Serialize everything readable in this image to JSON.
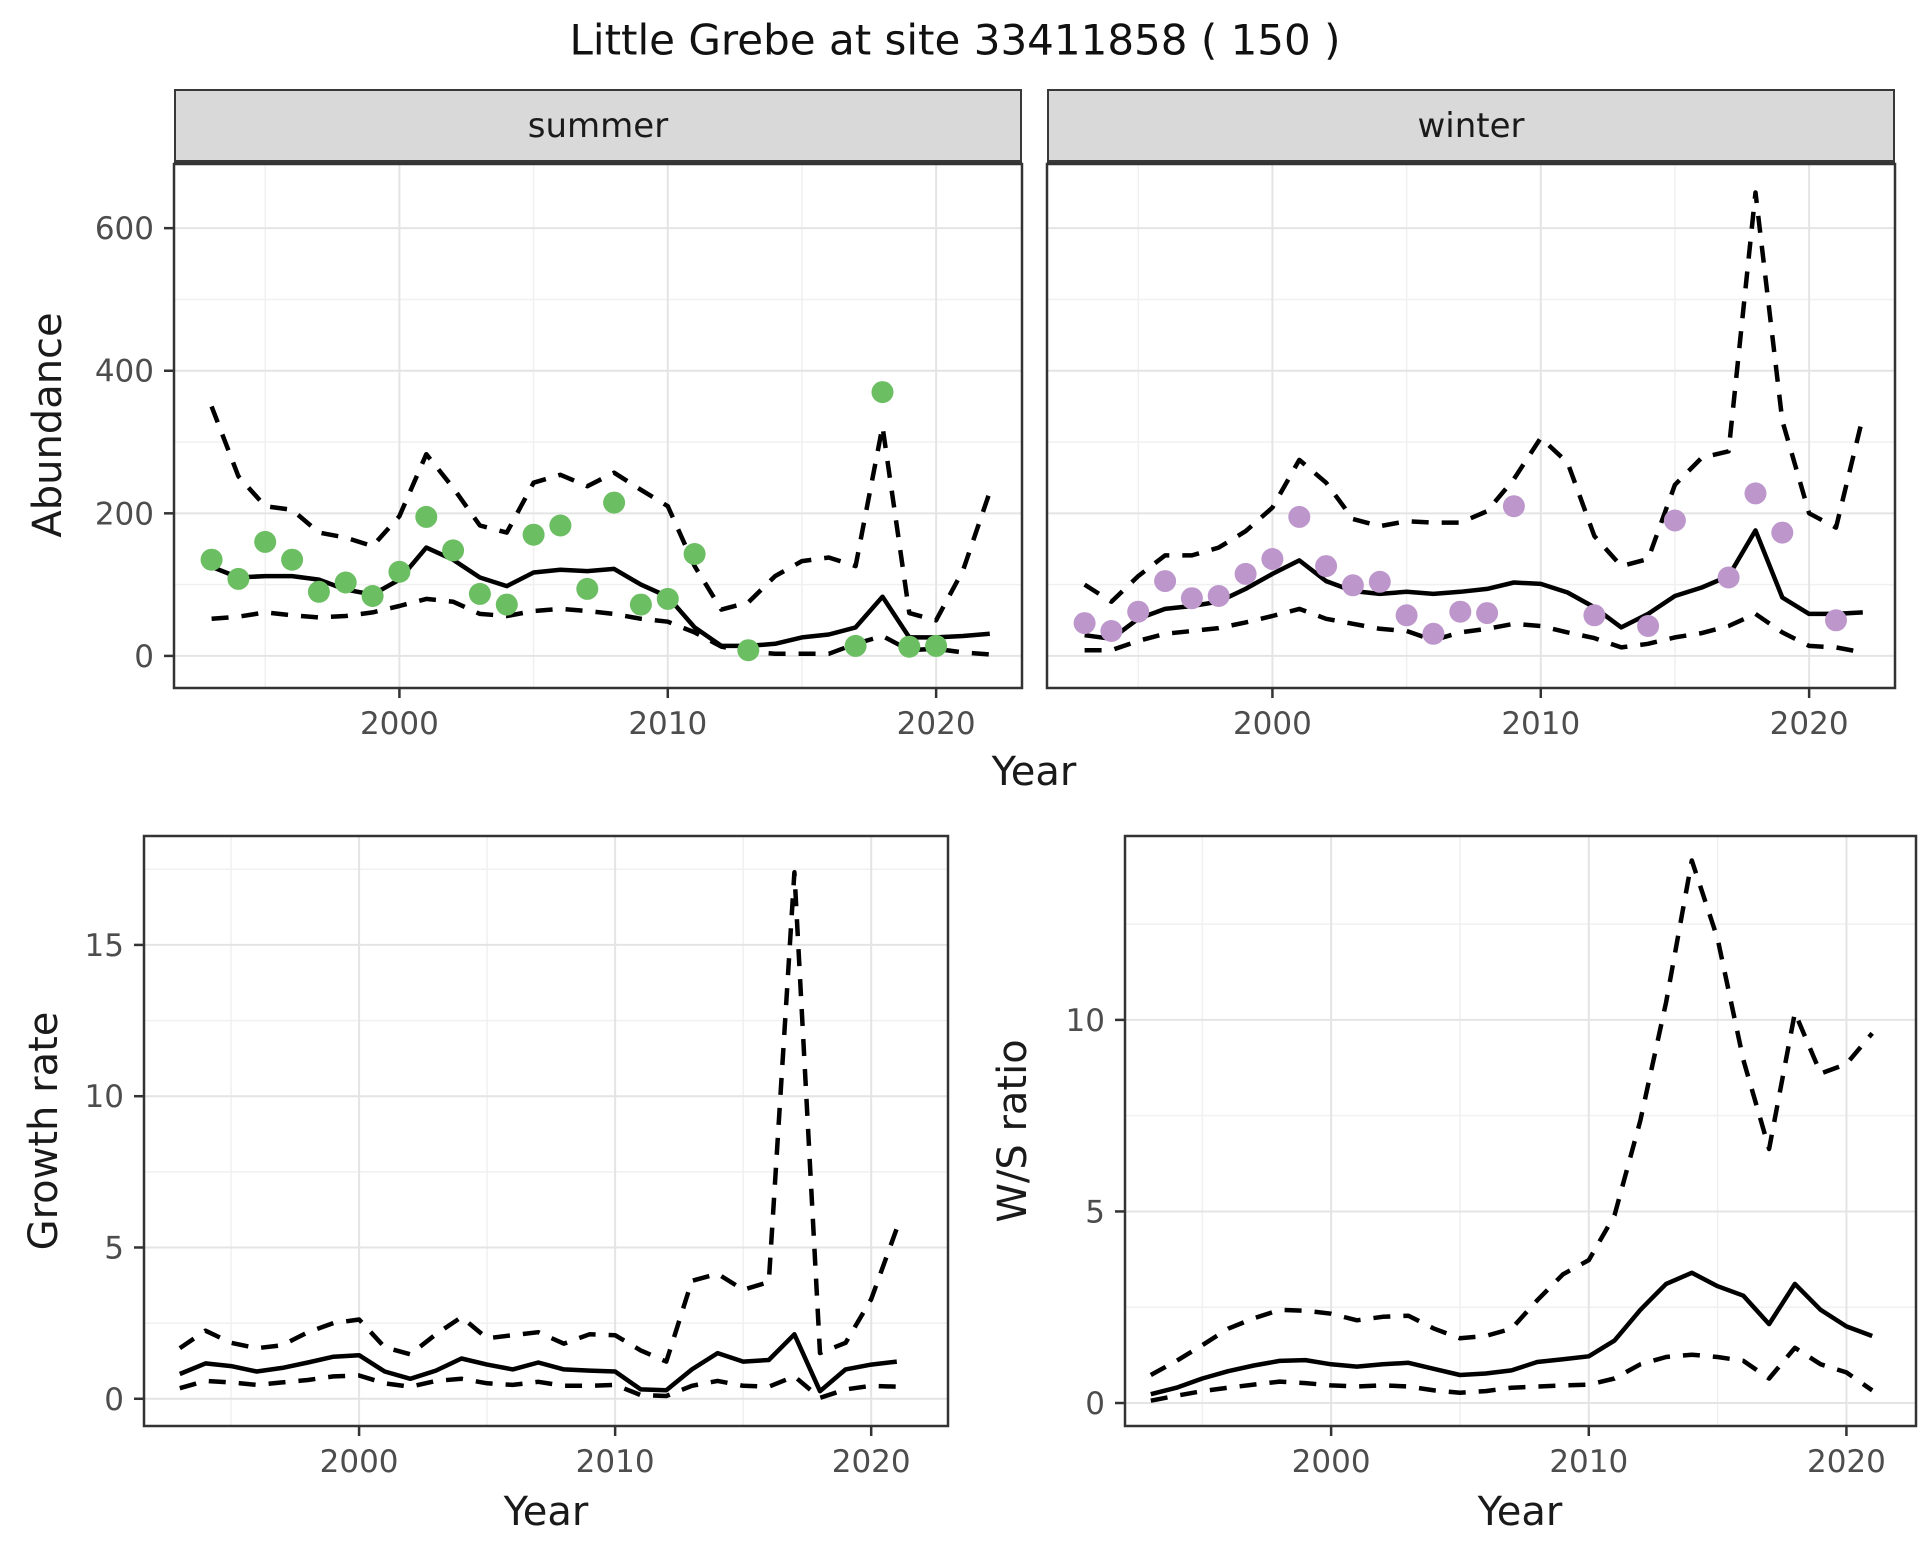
{
  "title": "Little Grebe at site 33411858 ( 150 )",
  "facets": {
    "summer": "summer",
    "winter": "winter"
  },
  "axis_titles": {
    "abundance": "Abundance",
    "year": "Year",
    "growth": "Growth rate",
    "ws": "W/S ratio"
  },
  "colors": {
    "summer_point": "#6cbe63",
    "winter_point": "#bd97cc",
    "line": "#000000",
    "strip_bg": "#d9d9d9",
    "panel_border": "#333333",
    "grid_major": "#e4e4e4",
    "grid_minor": "#f0f0f0",
    "tick_label": "#4d4d4d"
  },
  "chart_data": [
    {
      "id": "abundance_summer",
      "type": "line",
      "facet": "summer",
      "title": "Abundance - summer facet",
      "xlabel": "Year",
      "ylabel": "Abundance",
      "xlim": [
        1991.6,
        2023.2
      ],
      "ylim": [
        -45,
        690
      ],
      "xticks": [
        2000,
        2010,
        2020
      ],
      "yticks": [
        0,
        200,
        400,
        600
      ],
      "grid": true,
      "show_ylabels": true,
      "point_color": "#6cbe63",
      "x": [
        1993,
        1994,
        1995,
        1996,
        1997,
        1998,
        1999,
        2000,
        2001,
        2002,
        2003,
        2004,
        2005,
        2006,
        2007,
        2008,
        2009,
        2010,
        2011,
        2012,
        2013,
        2014,
        2015,
        2016,
        2017,
        2018,
        2019,
        2020,
        2021,
        2022
      ],
      "series": [
        {
          "name": "median",
          "style": "solid",
          "values": [
            125,
            110,
            112,
            112,
            107,
            93,
            86,
            107,
            152,
            135,
            110,
            98,
            117,
            121,
            119,
            122,
            100,
            83,
            40,
            14,
            14,
            17,
            26,
            30,
            40,
            83,
            26,
            26,
            28,
            31
          ]
        },
        {
          "name": "upper_ci",
          "style": "dashed",
          "values": [
            350,
            252,
            210,
            205,
            173,
            166,
            154,
            196,
            283,
            236,
            183,
            173,
            243,
            254,
            238,
            257,
            233,
            210,
            126,
            65,
            75,
            112,
            133,
            138,
            126,
            322,
            60,
            50,
            120,
            230
          ]
        },
        {
          "name": "lower_ci",
          "style": "dashed",
          "values": [
            52,
            55,
            61,
            57,
            54,
            56,
            61,
            70,
            80,
            76,
            59,
            56,
            63,
            66,
            63,
            59,
            52,
            48,
            33,
            13,
            6,
            3,
            3,
            3,
            17,
            28,
            8,
            10,
            5,
            2
          ]
        }
      ],
      "points": {
        "name": "observed_counts",
        "years": [
          1993,
          1994,
          1995,
          1996,
          1997,
          1998,
          1999,
          2000,
          2001,
          2002,
          2003,
          2004,
          2005,
          2006,
          2007,
          2008,
          2009,
          2010,
          2011,
          2013,
          2017,
          2018,
          2019,
          2020
        ],
        "values": [
          135,
          108,
          160,
          135,
          90,
          103,
          84,
          118,
          195,
          148,
          87,
          72,
          170,
          183,
          94,
          215,
          72,
          80,
          143,
          8,
          14,
          370,
          13,
          14
        ]
      }
    },
    {
      "id": "abundance_winter",
      "type": "line",
      "facet": "winter",
      "title": "Abundance - winter facet",
      "xlabel": "Year",
      "ylabel": "Abundance",
      "xlim": [
        1991.6,
        2023.2
      ],
      "ylim": [
        -45,
        690
      ],
      "xticks": [
        2000,
        2010,
        2020
      ],
      "yticks": [
        0,
        200,
        400,
        600
      ],
      "grid": true,
      "show_ylabels": false,
      "point_color": "#bd97cc",
      "x": [
        1993,
        1994,
        1995,
        1996,
        1997,
        1998,
        1999,
        2000,
        2001,
        2002,
        2003,
        2004,
        2005,
        2006,
        2007,
        2008,
        2009,
        2010,
        2011,
        2012,
        2013,
        2014,
        2015,
        2016,
        2017,
        2018,
        2019,
        2020,
        2021,
        2022
      ],
      "series": [
        {
          "name": "median",
          "style": "solid",
          "values": [
            29,
            24,
            52,
            66,
            70,
            76,
            94,
            115,
            134,
            105,
            91,
            87,
            90,
            87,
            90,
            94,
            103,
            101,
            89,
            68,
            40,
            59,
            84,
            96,
            112,
            176,
            82,
            59,
            59,
            61
          ]
        },
        {
          "name": "upper_ci",
          "style": "dashed",
          "values": [
            100,
            76,
            112,
            141,
            141,
            152,
            175,
            208,
            275,
            243,
            192,
            182,
            189,
            187,
            187,
            203,
            248,
            306,
            271,
            168,
            126,
            136,
            240,
            278,
            287,
            650,
            330,
            200,
            180,
            335
          ]
        },
        {
          "name": "lower_ci",
          "style": "dashed",
          "values": [
            8,
            8,
            21,
            31,
            35,
            39,
            47,
            56,
            66,
            52,
            45,
            38,
            35,
            22,
            33,
            38,
            45,
            42,
            33,
            25,
            12,
            17,
            26,
            32,
            42,
            59,
            33,
            14,
            12,
            5
          ]
        }
      ],
      "points": {
        "name": "observed_counts",
        "years": [
          1993,
          1994,
          1995,
          1996,
          1997,
          1998,
          1999,
          2000,
          2001,
          2002,
          2003,
          2004,
          2005,
          2006,
          2007,
          2008,
          2009,
          2012,
          2014,
          2015,
          2017,
          2018,
          2019,
          2021
        ],
        "values": [
          46,
          35,
          62,
          105,
          81,
          84,
          115,
          136,
          195,
          126,
          99,
          104,
          57,
          31,
          62,
          60,
          210,
          57,
          42,
          190,
          110,
          228,
          173,
          50
        ]
      }
    },
    {
      "id": "growth_rate",
      "type": "line",
      "facet": "",
      "title": "Growth rate",
      "xlabel": "Year",
      "ylabel": "Growth rate",
      "xlim": [
        1991.6,
        2023.0
      ],
      "ylim": [
        -0.9,
        18.6
      ],
      "xticks": [
        2000,
        2010,
        2020
      ],
      "yticks": [
        0,
        5,
        10,
        15
      ],
      "grid": true,
      "show_ylabels": true,
      "point_color": null,
      "x": [
        1993,
        1994,
        1995,
        1996,
        1997,
        1998,
        1999,
        2000,
        2001,
        2002,
        2003,
        2004,
        2005,
        2006,
        2007,
        2008,
        2009,
        2010,
        2011,
        2012,
        2013,
        2014,
        2015,
        2016,
        2017,
        2018,
        2019,
        2020,
        2021
      ],
      "series": [
        {
          "name": "median",
          "style": "solid",
          "values": [
            0.82,
            1.17,
            1.08,
            0.9,
            1.02,
            1.2,
            1.39,
            1.44,
            0.9,
            0.66,
            0.93,
            1.33,
            1.13,
            0.97,
            1.2,
            0.97,
            0.93,
            0.9,
            0.31,
            0.28,
            0.97,
            1.51,
            1.23,
            1.28,
            2.13,
            0.25,
            0.97,
            1.13,
            1.23
          ]
        },
        {
          "name": "upper_ci",
          "style": "dashed",
          "values": [
            1.67,
            2.25,
            1.85,
            1.67,
            1.77,
            2.2,
            2.5,
            2.62,
            1.7,
            1.47,
            2.13,
            2.7,
            2.0,
            2.1,
            2.2,
            1.82,
            2.13,
            2.1,
            1.6,
            1.23,
            3.9,
            4.13,
            3.6,
            3.86,
            17.4,
            1.51,
            1.85,
            3.29,
            5.63
          ]
        },
        {
          "name": "lower_ci",
          "style": "dashed",
          "values": [
            0.35,
            0.59,
            0.54,
            0.46,
            0.54,
            0.62,
            0.74,
            0.77,
            0.51,
            0.4,
            0.59,
            0.66,
            0.51,
            0.46,
            0.56,
            0.43,
            0.43,
            0.46,
            0.12,
            0.09,
            0.43,
            0.59,
            0.43,
            0.4,
            0.74,
            0.03,
            0.31,
            0.43,
            0.4
          ]
        }
      ],
      "points": null
    },
    {
      "id": "ws_ratio",
      "type": "line",
      "facet": "",
      "title": "W/S ratio",
      "xlabel": "Year",
      "ylabel": "W/S ratio",
      "xlim": [
        1992.0,
        2022.7
      ],
      "ylim": [
        -0.6,
        14.8
      ],
      "xticks": [
        2000,
        2010,
        2020
      ],
      "yticks": [
        0,
        5,
        10
      ],
      "grid": true,
      "show_ylabels": true,
      "point_color": null,
      "x": [
        1993,
        1994,
        1995,
        1996,
        1997,
        1998,
        1999,
        2000,
        2001,
        2002,
        2003,
        2004,
        2005,
        2006,
        2007,
        2008,
        2009,
        2010,
        2011,
        2012,
        2013,
        2014,
        2015,
        2016,
        2017,
        2018,
        2019,
        2020,
        2021
      ],
      "series": [
        {
          "name": "median",
          "style": "solid",
          "values": [
            0.23,
            0.4,
            0.64,
            0.83,
            0.98,
            1.1,
            1.12,
            1.01,
            0.95,
            1.01,
            1.05,
            0.89,
            0.73,
            0.77,
            0.85,
            1.07,
            1.14,
            1.22,
            1.63,
            2.43,
            3.11,
            3.4,
            3.05,
            2.8,
            2.06,
            3.11,
            2.43,
            2.0,
            1.75
          ]
        },
        {
          "name": "upper_ci",
          "style": "dashed",
          "values": [
            0.73,
            1.1,
            1.51,
            1.94,
            2.21,
            2.43,
            2.41,
            2.33,
            2.16,
            2.25,
            2.28,
            1.94,
            1.69,
            1.75,
            1.94,
            2.68,
            3.36,
            3.73,
            4.9,
            7.37,
            10.46,
            14.16,
            12.12,
            8.95,
            6.63,
            10.19,
            8.6,
            8.85,
            9.65
          ]
        },
        {
          "name": "lower_ci",
          "style": "dashed",
          "values": [
            0.06,
            0.19,
            0.31,
            0.4,
            0.48,
            0.56,
            0.52,
            0.46,
            0.43,
            0.46,
            0.43,
            0.33,
            0.27,
            0.31,
            0.4,
            0.43,
            0.46,
            0.48,
            0.64,
            1.01,
            1.2,
            1.26,
            1.2,
            1.1,
            0.64,
            1.44,
            1.01,
            0.8,
            0.33
          ]
        }
      ],
      "points": null
    }
  ]
}
